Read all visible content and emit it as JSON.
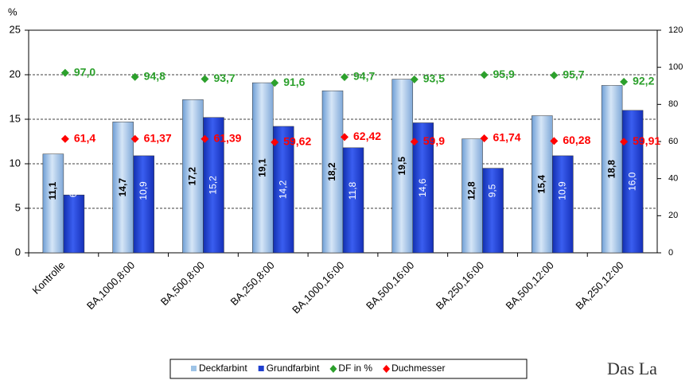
{
  "chart_data": {
    "type": "bar",
    "y_label": "%",
    "categories": [
      "Kontrolle",
      "BA,1000,8:00",
      "BA,500,8:00",
      "BA,250,8:00",
      "BA,1000,16:00",
      "BA,500,16:00",
      "BA,250,16:00",
      "BA,500,12:00",
      "BA,250,12:00"
    ],
    "series": [
      {
        "name": "Deckfarbint",
        "type": "bar",
        "color": "#9dc3e6",
        "values": [
          11.1,
          14.7,
          17.2,
          19.1,
          18.2,
          19.5,
          12.8,
          15.4,
          18.8
        ],
        "value_labels": [
          "11,1",
          "14,7",
          "17,2",
          "19,1",
          "18,2",
          "19,5",
          "12,8",
          "15,4",
          "18,8"
        ]
      },
      {
        "name": "Grundfarbint",
        "type": "bar",
        "color": "#1f3fcf",
        "values": [
          6.5,
          10.9,
          15.2,
          14.2,
          11.8,
          14.6,
          9.5,
          10.9,
          16.0
        ],
        "value_labels": [
          "6,5",
          "10,9",
          "15,2",
          "14,2",
          "11,8",
          "14,6",
          "9,5",
          "10,9",
          "16,0"
        ]
      },
      {
        "name": "DF in %",
        "type": "scatter",
        "axis": "y2",
        "color": "#2ca02c",
        "values": [
          97.0,
          94.8,
          93.7,
          91.6,
          94.7,
          93.5,
          95.9,
          95.7,
          92.2
        ],
        "value_labels": [
          "97,0",
          "94,8",
          "93,7",
          "91,6",
          "94,7",
          "93,5",
          "95,9",
          "95,7",
          "92,2"
        ]
      },
      {
        "name": "Duchmesser",
        "type": "scatter",
        "axis": "y2",
        "color": "#ff0000",
        "values": [
          61.4,
          61.37,
          61.39,
          59.62,
          62.42,
          59.9,
          61.74,
          60.28,
          59.91
        ],
        "value_labels": [
          "61,4",
          "61,37",
          "61,39",
          "59,62",
          "62,42",
          "59,9",
          "61,74",
          "60,28",
          "59,91"
        ]
      }
    ],
    "ylim": [
      0,
      25
    ],
    "yticks": [
      0,
      5,
      10,
      15,
      20,
      25
    ],
    "y2lim": [
      0,
      120
    ],
    "y2ticks": [
      0,
      20,
      40,
      60,
      80,
      100,
      120
    ],
    "grid": true,
    "legend": "bottom"
  },
  "logo_text": "Das La"
}
